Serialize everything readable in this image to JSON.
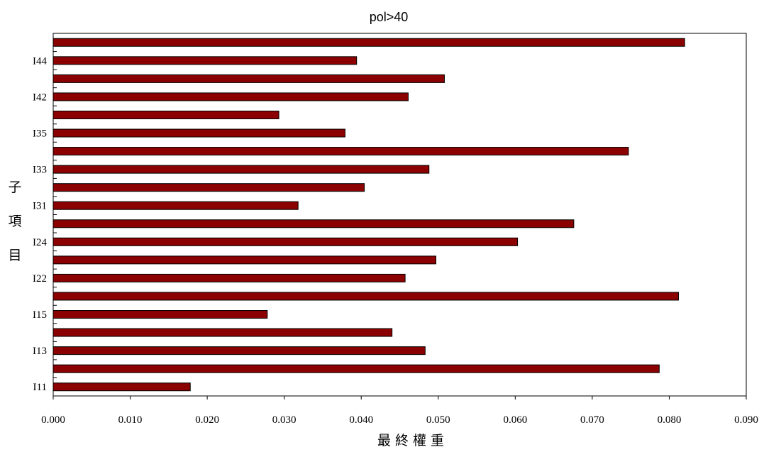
{
  "chart_data": {
    "type": "bar",
    "orientation": "horizontal",
    "title": "pol>40",
    "xlabel": "最終權重",
    "ylabel": "子項目",
    "xlim": [
      0,
      0.09
    ],
    "x_ticks": [
      "0.000",
      "0.010",
      "0.020",
      "0.030",
      "0.040",
      "0.050",
      "0.060",
      "0.070",
      "0.080",
      "0.090"
    ],
    "categories": [
      "I11",
      "",
      "I13",
      "",
      "I15",
      "",
      "I22",
      "",
      "I24",
      "",
      "I31",
      "",
      "I33",
      "",
      "I35",
      "",
      "I42",
      "",
      "I44",
      ""
    ],
    "values": [
      0.0178,
      0.0787,
      0.0483,
      0.044,
      0.0278,
      0.0812,
      0.0457,
      0.0497,
      0.0603,
      0.0676,
      0.0318,
      0.0404,
      0.0488,
      0.0747,
      0.0379,
      0.0293,
      0.0461,
      0.0508,
      0.0394,
      0.082
    ],
    "bar_color": "#8B0000",
    "grid": false,
    "legend": "none"
  }
}
